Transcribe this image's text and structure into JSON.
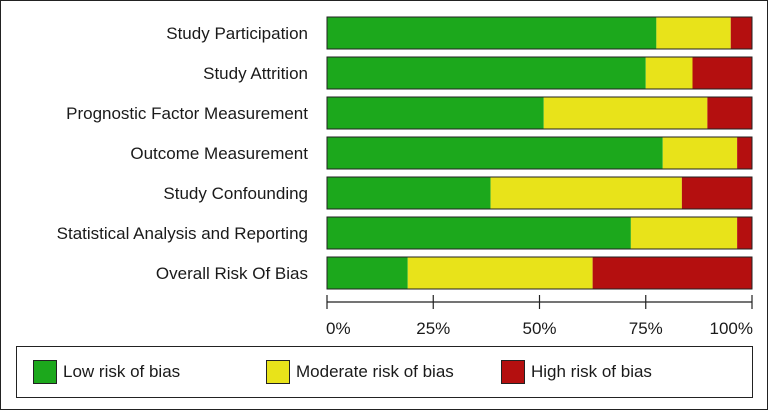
{
  "chart_data": {
    "type": "bar",
    "orientation": "horizontal",
    "stacked": true,
    "percent": true,
    "title": "",
    "xlabel": "",
    "ylabel": "",
    "xlim": [
      0,
      100
    ],
    "categories": [
      "Study Participation",
      "Study Attrition",
      "Prognostic Factor Measurement",
      "Outcome Measurement",
      "Study Confounding",
      "Statistical Analysis and Reporting",
      "Overall Risk Of Bias"
    ],
    "series": [
      {
        "name": "Low risk of bias",
        "color": "#1ca81c",
        "values": [
          77.5,
          75,
          51,
          79,
          38.5,
          71.5,
          19
        ]
      },
      {
        "name": "Moderate risk of bias",
        "color": "#e8e31a",
        "values": [
          17.5,
          11,
          38.5,
          17.5,
          45,
          25,
          43.5
        ]
      },
      {
        "name": "High risk of bias",
        "color": "#b40f0f",
        "values": [
          5,
          14,
          10.5,
          3.5,
          16.5,
          3.5,
          37.5
        ]
      }
    ],
    "ticks": [
      0,
      25,
      50,
      75,
      100
    ],
    "tick_labels": [
      "0%",
      "25%",
      "50%",
      "75%",
      "100%"
    ],
    "legend_position": "bottom",
    "grid": false
  }
}
